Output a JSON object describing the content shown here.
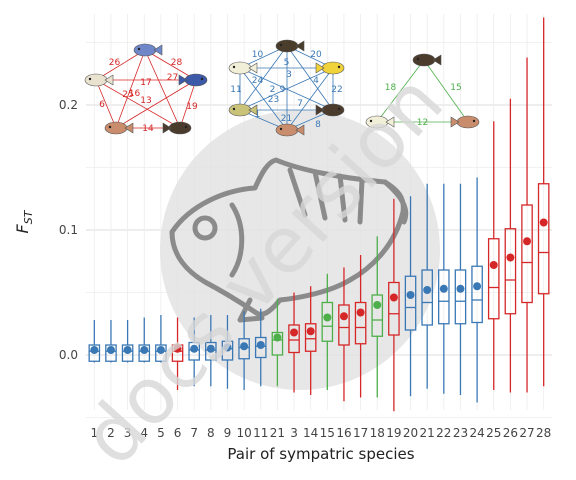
{
  "chart_data": {
    "type": "box",
    "xlabel": "Pair of sympatric species",
    "ylabel_main": "F",
    "ylabel_sub": "ST",
    "ylim": [
      -0.045,
      0.27
    ],
    "yticks": [
      0.0,
      0.1,
      0.2
    ],
    "ytick_labels": [
      "0.0",
      "0.1",
      "0.2"
    ],
    "grid": true,
    "watermark_text": "docs version",
    "colors": {
      "blue": "#3a78b5",
      "red": "#d62728",
      "green": "#4daf4a",
      "grey": "#666666"
    },
    "categories": [
      "1",
      "2",
      "3",
      "4",
      "5",
      "6",
      "7",
      "8",
      "9",
      "10",
      "11",
      "21",
      "3",
      "14",
      "15",
      "16",
      "17",
      "18",
      "19",
      "20",
      "21",
      "22",
      "23",
      "24",
      "25",
      "26",
      "27",
      "28"
    ],
    "boxes": [
      {
        "pair": "1",
        "color": "blue",
        "lo": -0.006,
        "q1": -0.005,
        "med": 0.003,
        "q3": 0.008,
        "hi": 0.028,
        "mean": 0.004
      },
      {
        "pair": "2",
        "color": "blue",
        "lo": -0.006,
        "q1": -0.005,
        "med": 0.003,
        "q3": 0.008,
        "hi": 0.028,
        "mean": 0.004
      },
      {
        "pair": "3",
        "color": "blue",
        "lo": -0.006,
        "q1": -0.005,
        "med": 0.003,
        "q3": 0.008,
        "hi": 0.028,
        "mean": 0.004
      },
      {
        "pair": "4",
        "color": "blue",
        "lo": -0.006,
        "q1": -0.005,
        "med": 0.003,
        "q3": 0.008,
        "hi": 0.03,
        "mean": 0.004
      },
      {
        "pair": "5",
        "color": "blue",
        "lo": -0.006,
        "q1": -0.005,
        "med": 0.003,
        "q3": 0.008,
        "hi": 0.032,
        "mean": 0.004
      },
      {
        "pair": "6",
        "color": "red",
        "lo": -0.028,
        "q1": -0.005,
        "med": 0.003,
        "q3": 0.008,
        "hi": 0.03,
        "mean": 0.005
      },
      {
        "pair": "7",
        "color": "blue",
        "lo": -0.025,
        "q1": -0.004,
        "med": 0.004,
        "q3": 0.01,
        "hi": 0.03,
        "mean": 0.005
      },
      {
        "pair": "8",
        "color": "blue",
        "lo": -0.025,
        "q1": -0.004,
        "med": 0.004,
        "q3": 0.01,
        "hi": 0.032,
        "mean": 0.005
      },
      {
        "pair": "9",
        "color": "blue",
        "lo": -0.027,
        "q1": -0.004,
        "med": 0.005,
        "q3": 0.011,
        "hi": 0.032,
        "mean": 0.006
      },
      {
        "pair": "10",
        "color": "blue",
        "lo": -0.028,
        "q1": -0.003,
        "med": 0.006,
        "q3": 0.013,
        "hi": 0.035,
        "mean": 0.007
      },
      {
        "pair": "11",
        "color": "blue",
        "lo": -0.025,
        "q1": -0.002,
        "med": 0.007,
        "q3": 0.014,
        "hi": 0.037,
        "mean": 0.008
      },
      {
        "pair": "21",
        "color": "green",
        "lo": -0.025,
        "q1": 0.0,
        "med": 0.012,
        "q3": 0.018,
        "hi": 0.045,
        "mean": 0.014
      },
      {
        "pair": "3",
        "color": "red",
        "lo": -0.03,
        "q1": 0.002,
        "med": 0.012,
        "q3": 0.024,
        "hi": 0.05,
        "mean": 0.018
      },
      {
        "pair": "14",
        "color": "red",
        "lo": -0.032,
        "q1": 0.003,
        "med": 0.013,
        "q3": 0.025,
        "hi": 0.055,
        "mean": 0.019
      },
      {
        "pair": "15",
        "color": "green",
        "lo": -0.028,
        "q1": 0.011,
        "med": 0.023,
        "q3": 0.042,
        "hi": 0.065,
        "mean": 0.03
      },
      {
        "pair": "16",
        "color": "red",
        "lo": -0.037,
        "q1": 0.008,
        "med": 0.022,
        "q3": 0.04,
        "hi": 0.07,
        "mean": 0.031
      },
      {
        "pair": "17",
        "color": "red",
        "lo": -0.034,
        "q1": 0.009,
        "med": 0.022,
        "q3": 0.042,
        "hi": 0.08,
        "mean": 0.034
      },
      {
        "pair": "18",
        "color": "green",
        "lo": -0.034,
        "q1": 0.015,
        "med": 0.028,
        "q3": 0.048,
        "hi": 0.095,
        "mean": 0.04
      },
      {
        "pair": "19",
        "color": "red",
        "lo": -0.045,
        "q1": 0.016,
        "med": 0.033,
        "q3": 0.058,
        "hi": 0.125,
        "mean": 0.046
      },
      {
        "pair": "20",
        "color": "blue",
        "lo": -0.033,
        "q1": 0.02,
        "med": 0.038,
        "q3": 0.063,
        "hi": 0.127,
        "mean": 0.048
      },
      {
        "pair": "21",
        "color": "blue",
        "lo": -0.027,
        "q1": 0.024,
        "med": 0.042,
        "q3": 0.068,
        "hi": 0.137,
        "mean": 0.052
      },
      {
        "pair": "22",
        "color": "blue",
        "lo": -0.031,
        "q1": 0.025,
        "med": 0.043,
        "q3": 0.068,
        "hi": 0.137,
        "mean": 0.053
      },
      {
        "pair": "23",
        "color": "blue",
        "lo": -0.032,
        "q1": 0.025,
        "med": 0.043,
        "q3": 0.068,
        "hi": 0.137,
        "mean": 0.053
      },
      {
        "pair": "24",
        "color": "blue",
        "lo": -0.038,
        "q1": 0.026,
        "med": 0.044,
        "q3": 0.071,
        "hi": 0.142,
        "mean": 0.055
      },
      {
        "pair": "25",
        "color": "red",
        "lo": -0.028,
        "q1": 0.029,
        "med": 0.054,
        "q3": 0.093,
        "hi": 0.187,
        "mean": 0.072
      },
      {
        "pair": "26",
        "color": "red",
        "lo": -0.03,
        "q1": 0.033,
        "med": 0.06,
        "q3": 0.101,
        "hi": 0.205,
        "mean": 0.078
      },
      {
        "pair": "27",
        "color": "red",
        "lo": -0.03,
        "q1": 0.042,
        "med": 0.074,
        "q3": 0.12,
        "hi": 0.238,
        "mean": 0.091
      },
      {
        "pair": "28",
        "color": "red",
        "lo": -0.025,
        "q1": 0.049,
        "med": 0.082,
        "q3": 0.137,
        "hi": 0.27,
        "mean": 0.106
      }
    ],
    "inset_networks": [
      {
        "color": "red",
        "edge_labels": [
          "26",
          "28",
          "17",
          "25",
          "27",
          "6",
          "13",
          "16",
          "19",
          "14"
        ]
      },
      {
        "color": "blue",
        "edge_labels": [
          "10",
          "20",
          "24",
          "5",
          "4",
          "11",
          "2",
          "23",
          "9",
          "22",
          "21",
          "1",
          "7",
          "8",
          "3"
        ]
      },
      {
        "color": "green",
        "edge_labels": [
          "18",
          "15",
          "12"
        ]
      }
    ]
  }
}
